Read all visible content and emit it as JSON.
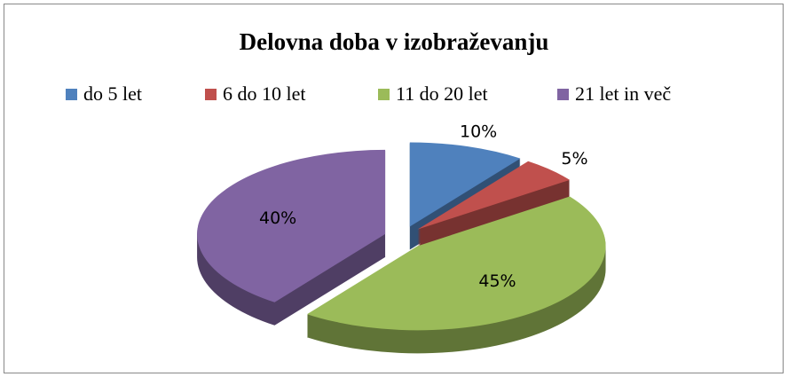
{
  "chart_data": {
    "type": "pie",
    "title": "Delovna doba v izobraževanju",
    "categories": [
      "do 5 let",
      "6 do 10 let",
      "11 do 20 let",
      "21 let in več"
    ],
    "values": [
      10,
      5,
      45,
      40
    ],
    "value_labels": [
      "10%",
      "5%",
      "45%",
      "40%"
    ],
    "colors": [
      "#4f81bd",
      "#c0504d",
      "#9bbb59",
      "#8064a2"
    ],
    "legend": "top"
  }
}
